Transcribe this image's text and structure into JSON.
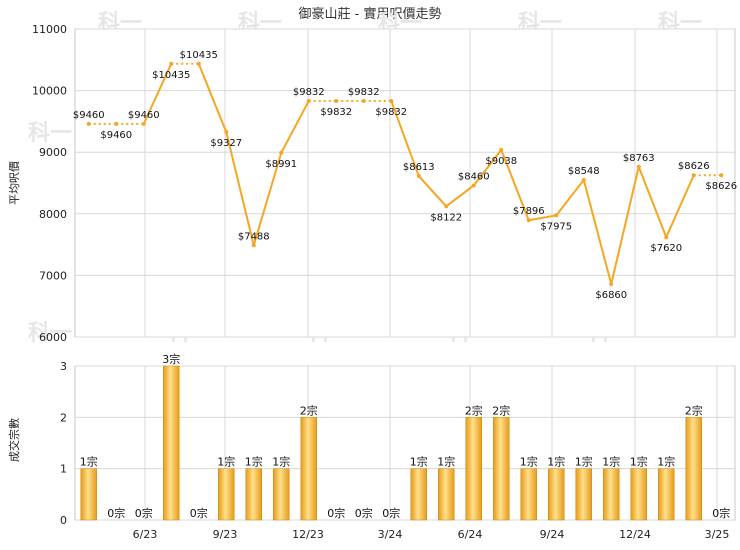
{
  "chart_data": [
    {
      "type": "line",
      "title": "御豪山莊 - 實用呎價走勢",
      "ylabel": "平均呎價",
      "ylim": [
        6000,
        11000
      ],
      "yticks": [
        6000,
        7000,
        8000,
        9000,
        10000,
        11000
      ],
      "xticks": [
        "6/23",
        "9/23",
        "12/23",
        "3/24",
        "6/24",
        "9/24",
        "12/24",
        "3/25"
      ],
      "grid": true,
      "color": "#f5a623",
      "series": [
        {
          "values": [
            9460,
            9460,
            9460,
            10435,
            10435,
            9327,
            7488,
            8991,
            9832,
            9832,
            9832,
            9832,
            8613,
            8122,
            8460,
            9038,
            7896,
            7975,
            8548,
            6860,
            8763,
            7620,
            8626,
            8626
          ],
          "labels": [
            "$9460",
            "$9460",
            "$9460",
            "$10435",
            "$10435",
            "$9327",
            "$7488",
            "$8991",
            "$9832",
            "$9832",
            "$9832",
            "$9832",
            "$8613",
            "$8122",
            "$8460",
            "$9038",
            "$7896",
            "$7975",
            "$8548",
            "$6860",
            "$8763",
            "$7620",
            "$8626",
            "$8626"
          ]
        }
      ]
    },
    {
      "type": "bar",
      "ylabel": "成交宗數",
      "ylim": [
        0,
        3
      ],
      "yticks": [
        0,
        1,
        2,
        3
      ],
      "xticks": [
        "6/23",
        "9/23",
        "12/23",
        "3/24",
        "6/24",
        "9/24",
        "12/24",
        "3/25"
      ],
      "grid": true,
      "color": "#f5a623",
      "values": [
        1,
        0,
        0,
        3,
        0,
        1,
        1,
        1,
        2,
        0,
        0,
        0,
        1,
        1,
        2,
        2,
        1,
        1,
        1,
        1,
        1,
        1,
        2,
        0
      ],
      "labels": [
        "1宗",
        "0宗",
        "0宗",
        "3宗",
        "0宗",
        "1宗",
        "1宗",
        "1宗",
        "2宗",
        "0宗",
        "0宗",
        "0宗",
        "1宗",
        "1宗",
        "2宗",
        "2宗",
        "1宗",
        "1宗",
        "1宗",
        "1宗",
        "1宗",
        "1宗",
        "2宗",
        "0宗"
      ]
    }
  ],
  "watermark": "科一"
}
